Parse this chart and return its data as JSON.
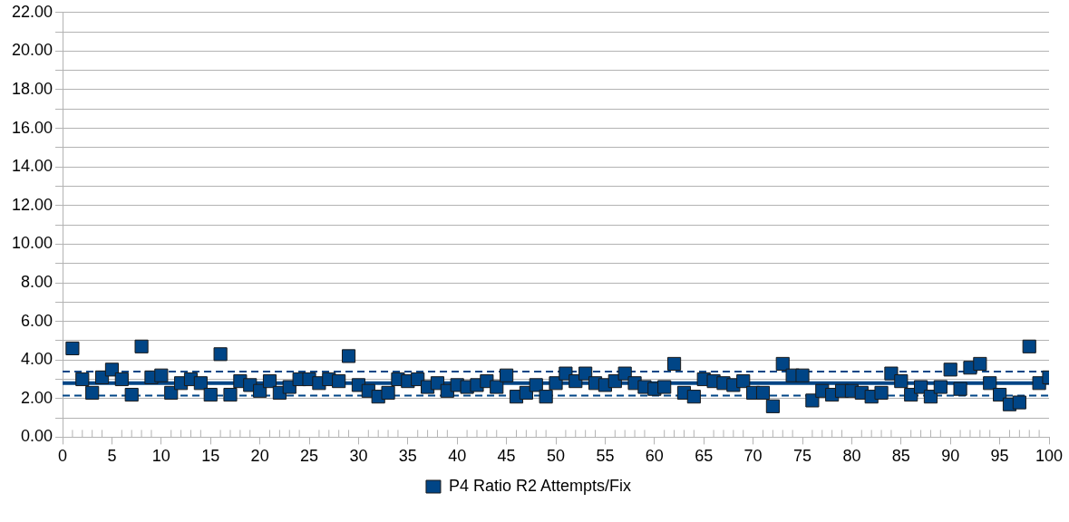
{
  "chart_data": {
    "type": "scatter",
    "legend": "bottom",
    "grid": "y",
    "marker": "square",
    "x": [
      1,
      2,
      3,
      4,
      5,
      6,
      7,
      8,
      9,
      10,
      11,
      12,
      13,
      14,
      15,
      16,
      17,
      18,
      19,
      20,
      21,
      22,
      23,
      24,
      25,
      26,
      27,
      28,
      29,
      30,
      31,
      32,
      33,
      34,
      35,
      36,
      37,
      38,
      39,
      40,
      41,
      42,
      43,
      44,
      45,
      46,
      47,
      48,
      49,
      50,
      51,
      52,
      53,
      54,
      55,
      56,
      57,
      58,
      59,
      60,
      61,
      62,
      63,
      64,
      65,
      66,
      67,
      68,
      69,
      70,
      71,
      72,
      73,
      74,
      75,
      76,
      77,
      78,
      79,
      80,
      81,
      82,
      83,
      84,
      85,
      86,
      87,
      88,
      89,
      90,
      91,
      92,
      93,
      94,
      95,
      96,
      97,
      98,
      99,
      100
    ],
    "series": [
      {
        "name": "P4 Ratio R2 Attempts/Fix",
        "color": "#004586",
        "values": [
          4.6,
          3.0,
          2.3,
          3.1,
          3.5,
          3.0,
          2.2,
          4.7,
          3.1,
          3.2,
          2.3,
          2.8,
          3.0,
          2.8,
          2.2,
          4.3,
          2.2,
          2.9,
          2.7,
          2.4,
          2.9,
          2.3,
          2.6,
          3.0,
          3.0,
          2.8,
          3.0,
          2.9,
          4.2,
          2.7,
          2.4,
          2.1,
          2.3,
          3.0,
          2.9,
          3.0,
          2.6,
          2.8,
          2.4,
          2.7,
          2.6,
          2.7,
          2.9,
          2.6,
          3.2,
          2.1,
          2.3,
          2.7,
          2.1,
          2.8,
          3.3,
          2.9,
          3.3,
          2.8,
          2.7,
          2.9,
          3.3,
          2.8,
          2.6,
          2.5,
          2.6,
          3.8,
          2.3,
          2.1,
          3.0,
          2.9,
          2.8,
          2.7,
          2.9,
          2.3,
          2.3,
          1.6,
          3.8,
          3.2,
          3.2,
          1.9,
          2.4,
          2.2,
          2.4,
          2.4,
          2.3,
          2.1,
          2.3,
          3.3,
          2.9,
          2.2,
          2.6,
          2.1,
          2.6,
          3.5,
          2.5,
          3.6,
          3.8,
          2.8,
          2.2,
          1.7,
          1.8,
          4.7,
          2.8,
          3.1
        ]
      }
    ],
    "ref_lines": [
      {
        "axis": "y",
        "value": 2.8,
        "color": "#004586",
        "line_style": "solid"
      },
      {
        "axis": "y",
        "value": 3.4,
        "color": "#004586",
        "line_style": "dashed"
      },
      {
        "axis": "y",
        "value": 2.15,
        "color": "#004586",
        "line_style": "dashed"
      }
    ],
    "xlim": [
      0,
      100
    ],
    "xticks": [
      0,
      {
        "value": 1,
        "label": null
      },
      {
        "value": 2,
        "label": null
      },
      {
        "value": 3,
        "label": null
      },
      {
        "value": 4,
        "label": null
      },
      5,
      {
        "value": 6,
        "label": null
      },
      {
        "value": 7,
        "label": null
      },
      {
        "value": 8,
        "label": null
      },
      {
        "value": 9,
        "label": null
      },
      10,
      {
        "value": 11,
        "label": null
      },
      {
        "value": 12,
        "label": null
      },
      {
        "value": 13,
        "label": null
      },
      {
        "value": 14,
        "label": null
      },
      15,
      {
        "value": 16,
        "label": null
      },
      {
        "value": 17,
        "label": null
      },
      {
        "value": 18,
        "label": null
      },
      {
        "value": 19,
        "label": null
      },
      20,
      {
        "value": 21,
        "label": null
      },
      {
        "value": 22,
        "label": null
      },
      {
        "value": 23,
        "label": null
      },
      {
        "value": 24,
        "label": null
      },
      25,
      {
        "value": 26,
        "label": null
      },
      {
        "value": 27,
        "label": null
      },
      {
        "value": 28,
        "label": null
      },
      {
        "value": 29,
        "label": null
      },
      30,
      {
        "value": 31,
        "label": null
      },
      {
        "value": 32,
        "label": null
      },
      {
        "value": 33,
        "label": null
      },
      {
        "value": 34,
        "label": null
      },
      35,
      {
        "value": 36,
        "label": null
      },
      {
        "value": 37,
        "label": null
      },
      {
        "value": 38,
        "label": null
      },
      {
        "value": 39,
        "label": null
      },
      40,
      {
        "value": 41,
        "label": null
      },
      {
        "value": 42,
        "label": null
      },
      {
        "value": 43,
        "label": null
      },
      {
        "value": 44,
        "label": null
      },
      45,
      {
        "value": 46,
        "label": null
      },
      {
        "value": 47,
        "label": null
      },
      {
        "value": 48,
        "label": null
      },
      {
        "value": 49,
        "label": null
      },
      50,
      {
        "value": 51,
        "label": null
      },
      {
        "value": 52,
        "label": null
      },
      {
        "value": 53,
        "label": null
      },
      {
        "value": 54,
        "label": null
      },
      55,
      {
        "value": 56,
        "label": null
      },
      {
        "value": 57,
        "label": null
      },
      {
        "value": 58,
        "label": null
      },
      {
        "value": 59,
        "label": null
      },
      60,
      {
        "value": 61,
        "label": null
      },
      {
        "value": 62,
        "label": null
      },
      {
        "value": 63,
        "label": null
      },
      {
        "value": 64,
        "label": null
      },
      65,
      {
        "value": 66,
        "label": null
      },
      {
        "value": 67,
        "label": null
      },
      {
        "value": 68,
        "label": null
      },
      {
        "value": 69,
        "label": null
      },
      70,
      {
        "value": 71,
        "label": null
      },
      {
        "value": 72,
        "label": null
      },
      {
        "value": 73,
        "label": null
      },
      {
        "value": 74,
        "label": null
      },
      75,
      {
        "value": 76,
        "label": null
      },
      {
        "value": 77,
        "label": null
      },
      {
        "value": 78,
        "label": null
      },
      {
        "value": 79,
        "label": null
      },
      80,
      {
        "value": 81,
        "label": null
      },
      {
        "value": 82,
        "label": null
      },
      {
        "value": 83,
        "label": null
      },
      {
        "value": 84,
        "label": null
      },
      85,
      {
        "value": 86,
        "label": null
      },
      {
        "value": 87,
        "label": null
      },
      {
        "value": 88,
        "label": null
      },
      {
        "value": 89,
        "label": null
      },
      90,
      {
        "value": 91,
        "label": null
      },
      {
        "value": 92,
        "label": null
      },
      {
        "value": 93,
        "label": null
      },
      {
        "value": 94,
        "label": null
      },
      95,
      {
        "value": 96,
        "label": null
      },
      {
        "value": 97,
        "label": null
      },
      {
        "value": 98,
        "label": null
      },
      {
        "value": 99,
        "label": null
      },
      100
    ],
    "ylim": [
      0,
      22
    ],
    "yticks": [
      {
        "value": 0,
        "label": "0.00"
      },
      {
        "value": 1,
        "label": null
      },
      {
        "value": 2,
        "label": "2.00"
      },
      {
        "value": 3,
        "label": null
      },
      {
        "value": 4,
        "label": "4.00"
      },
      {
        "value": 5,
        "label": null
      },
      {
        "value": 6,
        "label": "6.00"
      },
      {
        "value": 7,
        "label": null
      },
      {
        "value": 8,
        "label": "8.00"
      },
      {
        "value": 9,
        "label": null
      },
      {
        "value": 10,
        "label": "10.00"
      },
      {
        "value": 11,
        "label": null
      },
      {
        "value": 12,
        "label": "12.00"
      },
      {
        "value": 13,
        "label": null
      },
      {
        "value": 14,
        "label": "14.00"
      },
      {
        "value": 15,
        "label": null
      },
      {
        "value": 16,
        "label": "16.00"
      },
      {
        "value": 17,
        "label": null
      },
      {
        "value": 18,
        "label": "18.00"
      },
      {
        "value": 19,
        "label": null
      },
      {
        "value": 20,
        "label": "20.00"
      },
      {
        "value": 21,
        "label": null
      },
      {
        "value": 22,
        "label": "22.00"
      }
    ]
  }
}
